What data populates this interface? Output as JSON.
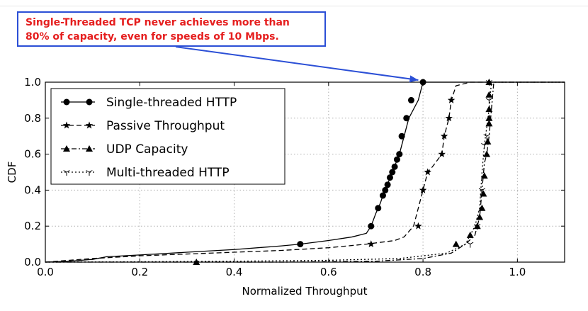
{
  "annotation": {
    "line1": "Single-Threaded TCP never achieves more than",
    "line2": "80% of capacity, even for speeds of 10 Mbps.",
    "text_color": "#e51e1e",
    "border_color": "#2b4fd6",
    "arrow_color": "#2b4fd6",
    "arrow_target": {
      "x": 0.79,
      "y": 1.0
    }
  },
  "chart_data": {
    "type": "line",
    "xlabel": "Normalized Throughput",
    "ylabel": "CDF",
    "xlim": [
      0.0,
      1.1
    ],
    "ylim": [
      0.0,
      1.0
    ],
    "xticks": [
      0.0,
      0.2,
      0.4,
      0.6,
      0.8,
      1.0
    ],
    "yticks": [
      0.0,
      0.2,
      0.4,
      0.6,
      0.8,
      1.0
    ],
    "xtick_labels": [
      "0.0",
      "0.2",
      "0.4",
      "0.6",
      "0.8",
      "1.0"
    ],
    "ytick_labels": [
      "0.0",
      "0.2",
      "0.4",
      "0.6",
      "0.8",
      "1.0"
    ],
    "grid": true,
    "legend_position": "top-left",
    "series": [
      {
        "name": "Single-threaded HTTP",
        "line_style": "solid",
        "marker": "circle",
        "color": "#000000",
        "x": [
          0.0,
          0.05,
          0.1,
          0.13,
          0.2,
          0.3,
          0.4,
          0.5,
          0.54,
          0.6,
          0.65,
          0.68,
          0.69,
          0.7,
          0.705,
          0.71,
          0.715,
          0.72,
          0.725,
          0.73,
          0.735,
          0.74,
          0.745,
          0.75,
          0.76,
          0.77,
          0.79,
          0.8,
          1.1
        ],
        "y": [
          0.0,
          0.005,
          0.015,
          0.03,
          0.04,
          0.055,
          0.07,
          0.09,
          0.1,
          0.12,
          0.14,
          0.16,
          0.2,
          0.27,
          0.3,
          0.33,
          0.37,
          0.4,
          0.43,
          0.47,
          0.5,
          0.53,
          0.57,
          0.6,
          0.7,
          0.8,
          0.9,
          1.0,
          1.0
        ],
        "marker_points": [
          [
            0.54,
            0.1
          ],
          [
            0.69,
            0.2
          ],
          [
            0.705,
            0.3
          ],
          [
            0.715,
            0.37
          ],
          [
            0.72,
            0.4
          ],
          [
            0.725,
            0.43
          ],
          [
            0.73,
            0.47
          ],
          [
            0.735,
            0.5
          ],
          [
            0.74,
            0.53
          ],
          [
            0.745,
            0.57
          ],
          [
            0.75,
            0.6
          ],
          [
            0.755,
            0.7
          ],
          [
            0.765,
            0.8
          ],
          [
            0.775,
            0.9
          ],
          [
            0.8,
            1.0
          ]
        ]
      },
      {
        "name": "Passive Throughput",
        "line_style": "dashed",
        "marker": "star",
        "color": "#000000",
        "x": [
          0.0,
          0.1,
          0.2,
          0.3,
          0.4,
          0.5,
          0.6,
          0.68,
          0.74,
          0.76,
          0.78,
          0.79,
          0.8,
          0.81,
          0.82,
          0.84,
          0.845,
          0.855,
          0.86,
          0.87,
          0.9,
          1.1
        ],
        "y": [
          0.0,
          0.02,
          0.035,
          0.045,
          0.055,
          0.065,
          0.08,
          0.1,
          0.12,
          0.14,
          0.2,
          0.3,
          0.4,
          0.5,
          0.53,
          0.6,
          0.7,
          0.8,
          0.9,
          0.98,
          1.0,
          1.0
        ],
        "marker_points": [
          [
            0.69,
            0.1
          ],
          [
            0.79,
            0.2
          ],
          [
            0.8,
            0.4
          ],
          [
            0.81,
            0.5
          ],
          [
            0.84,
            0.6
          ],
          [
            0.845,
            0.7
          ],
          [
            0.855,
            0.8
          ],
          [
            0.86,
            0.9
          ]
        ]
      },
      {
        "name": "UDP Capacity",
        "line_style": "dashdot",
        "marker": "triangle",
        "color": "#000000",
        "x": [
          0.0,
          0.2,
          0.32,
          0.5,
          0.7,
          0.8,
          0.86,
          0.89,
          0.91,
          0.92,
          0.925,
          0.93,
          0.935,
          0.94,
          0.945,
          0.95,
          1.1
        ],
        "y": [
          0.0,
          0.0,
          0.0,
          0.0,
          0.005,
          0.02,
          0.05,
          0.1,
          0.15,
          0.25,
          0.4,
          0.55,
          0.6,
          0.7,
          0.85,
          1.0,
          1.0
        ],
        "marker_points": [
          [
            0.32,
            0.0
          ],
          [
            0.87,
            0.1
          ],
          [
            0.9,
            0.15
          ],
          [
            0.915,
            0.2
          ],
          [
            0.92,
            0.25
          ],
          [
            0.925,
            0.3
          ],
          [
            0.928,
            0.38
          ],
          [
            0.93,
            0.48
          ],
          [
            0.935,
            0.6
          ],
          [
            0.937,
            0.67
          ],
          [
            0.94,
            0.77
          ],
          [
            0.94,
            0.8
          ],
          [
            0.94,
            0.85
          ],
          [
            0.94,
            0.93
          ],
          [
            0.94,
            1.0
          ]
        ]
      },
      {
        "name": "Multi-threaded HTTP",
        "line_style": "dotted",
        "marker": "tri_down",
        "color": "#000000",
        "x": [
          0.0,
          0.2,
          0.4,
          0.6,
          0.75,
          0.85,
          0.89,
          0.91,
          0.92,
          0.925,
          0.93,
          0.935,
          0.94,
          0.945,
          1.1
        ],
        "y": [
          0.0,
          0.002,
          0.005,
          0.01,
          0.02,
          0.05,
          0.1,
          0.2,
          0.3,
          0.5,
          0.65,
          0.75,
          0.85,
          1.0,
          1.0
        ],
        "marker_points": [
          [
            0.9,
            0.1
          ],
          [
            0.915,
            0.2
          ],
          [
            0.925,
            0.4
          ],
          [
            0.93,
            0.65
          ],
          [
            0.935,
            0.7
          ],
          [
            0.94,
            0.9
          ],
          [
            0.94,
            1.0
          ]
        ]
      }
    ]
  }
}
